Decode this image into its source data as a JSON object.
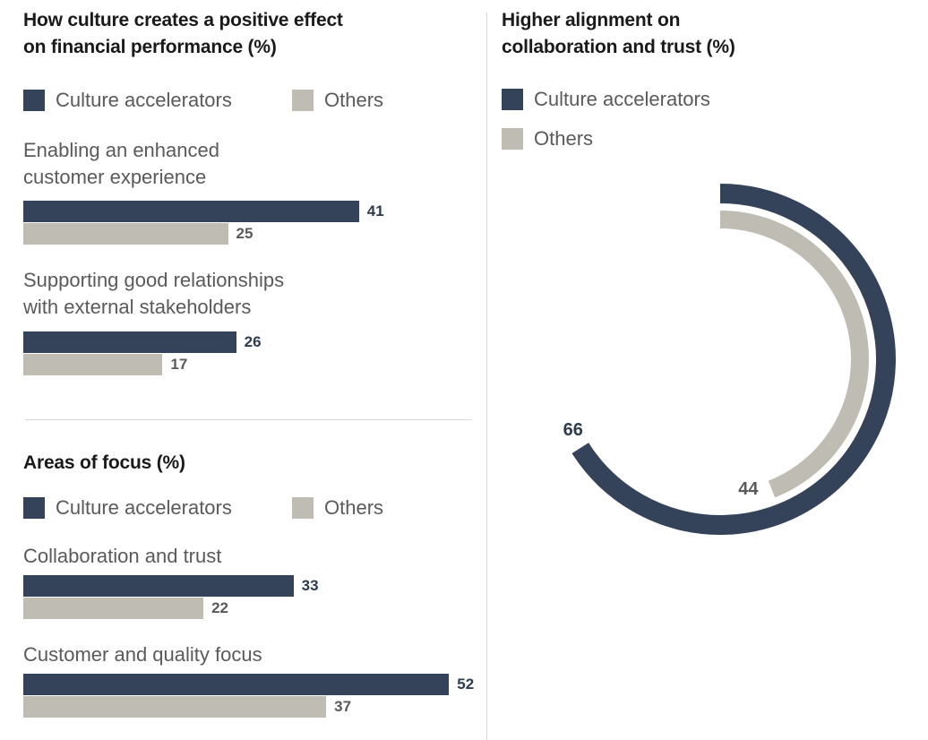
{
  "colors": {
    "culture_accelerators": "#34435a",
    "others": "#bfbcb4"
  },
  "chart_data": [
    {
      "type": "bar",
      "orientation": "horizontal",
      "title": "How culture creates a positive effect on financial performance (%)",
      "title_lines": [
        "How culture creates a positive effect",
        "on financial performance (%)"
      ],
      "legend": [
        "Culture accelerators",
        "Others"
      ],
      "legend_position": "top-left",
      "categories": [
        {
          "label_lines": [
            "Enabling an enhanced",
            "customer experience"
          ],
          "label": "Enabling an enhanced customer experience"
        },
        {
          "label_lines": [
            "Supporting good relationships",
            "with external stakeholders"
          ],
          "label": "Supporting good relationships with external stakeholders"
        }
      ],
      "series": [
        {
          "name": "Culture accelerators",
          "values": [
            41,
            26
          ]
        },
        {
          "name": "Others",
          "values": [
            25,
            17
          ]
        }
      ],
      "xlabel": "",
      "ylabel": "",
      "xlim": [
        0,
        55
      ],
      "grid": false
    },
    {
      "type": "bar",
      "orientation": "horizontal",
      "title": "Areas of focus (%)",
      "title_lines": [
        "Areas of focus (%)"
      ],
      "legend": [
        "Culture accelerators",
        "Others"
      ],
      "legend_position": "top-left",
      "categories": [
        {
          "label_lines": [
            "Collaboration and trust"
          ],
          "label": "Collaboration and trust"
        },
        {
          "label_lines": [
            "Customer and quality focus"
          ],
          "label": "Customer and quality focus"
        }
      ],
      "series": [
        {
          "name": "Culture accelerators",
          "values": [
            33,
            52
          ]
        },
        {
          "name": "Others",
          "values": [
            22,
            37
          ]
        }
      ],
      "xlabel": "",
      "ylabel": "",
      "xlim": [
        0,
        55
      ],
      "grid": false
    },
    {
      "type": "pie",
      "subtype": "radial-bar",
      "title": "Higher alignment on collaboration and trust (%)",
      "title_lines": [
        "Higher alignment on",
        "collaboration and trust (%)"
      ],
      "legend": [
        "Culture accelerators",
        "Others"
      ],
      "legend_position": "top-left",
      "series": [
        {
          "name": "Culture accelerators",
          "value": 66,
          "label": "66"
        },
        {
          "name": "Others",
          "value": 44,
          "label": "44"
        }
      ],
      "scale_max": 100,
      "direction": "clockwise-from-top"
    }
  ]
}
